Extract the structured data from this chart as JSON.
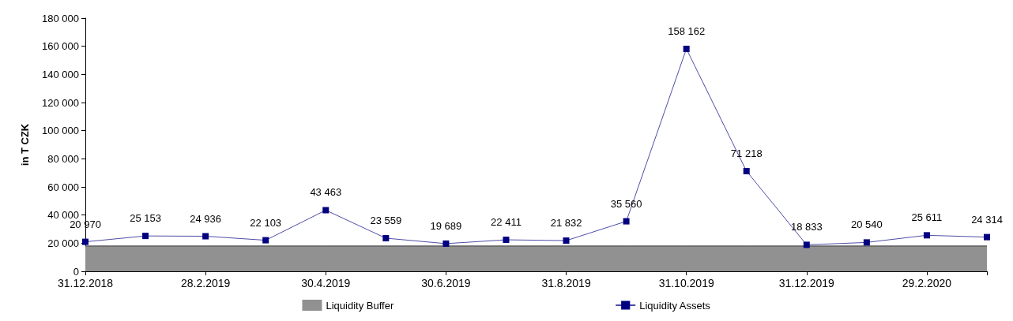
{
  "chart_data": {
    "type": "line",
    "ylabel": "in T CZK",
    "categories": [
      "31.12.2018",
      null,
      "28.2.2019",
      null,
      "30.4.2019",
      null,
      "30.6.2019",
      null,
      "31.8.2019",
      null,
      "31.10.2019",
      null,
      "31.12.2019",
      null,
      "29.2.2020",
      null
    ],
    "series": [
      {
        "name": "Liquidity Buffer",
        "type": "area",
        "color": "#919191",
        "values": [
          18000,
          18000,
          18000,
          18000,
          18000,
          18000,
          18000,
          18000,
          18000,
          18000,
          18000,
          18000,
          18000,
          18000,
          18000,
          18000
        ]
      },
      {
        "name": "Liquidity Assets",
        "marker": "square",
        "color": "#000080",
        "values": [
          20970,
          25153,
          24936,
          22103,
          43463,
          23559,
          19689,
          22411,
          21832,
          35560,
          158162,
          71218,
          18833,
          20540,
          25611,
          24314
        ],
        "value_labels": [
          "20 970",
          "25 153",
          "24 936",
          "22 103",
          "43 463",
          "23 559",
          "19 689",
          "22 411",
          "21 832",
          "35 560",
          "158 162",
          "71 218",
          "18 833",
          "20 540",
          "25 611",
          "24 314"
        ]
      }
    ],
    "ylim": [
      0,
      180000
    ],
    "yticks": [
      {
        "value": 0,
        "label": "0"
      },
      {
        "value": 20000,
        "label": "20 000"
      },
      {
        "value": 40000,
        "label": "40 000"
      },
      {
        "value": 60000,
        "label": "60 000"
      },
      {
        "value": 80000,
        "label": "80 000"
      },
      {
        "value": 100000,
        "label": "100 000"
      },
      {
        "value": 120000,
        "label": "120 000"
      },
      {
        "value": 140000,
        "label": "140 000"
      },
      {
        "value": 160000,
        "label": "160 000"
      },
      {
        "value": 180000,
        "label": "180 000"
      }
    ],
    "grid": false,
    "legend": "bottom"
  }
}
